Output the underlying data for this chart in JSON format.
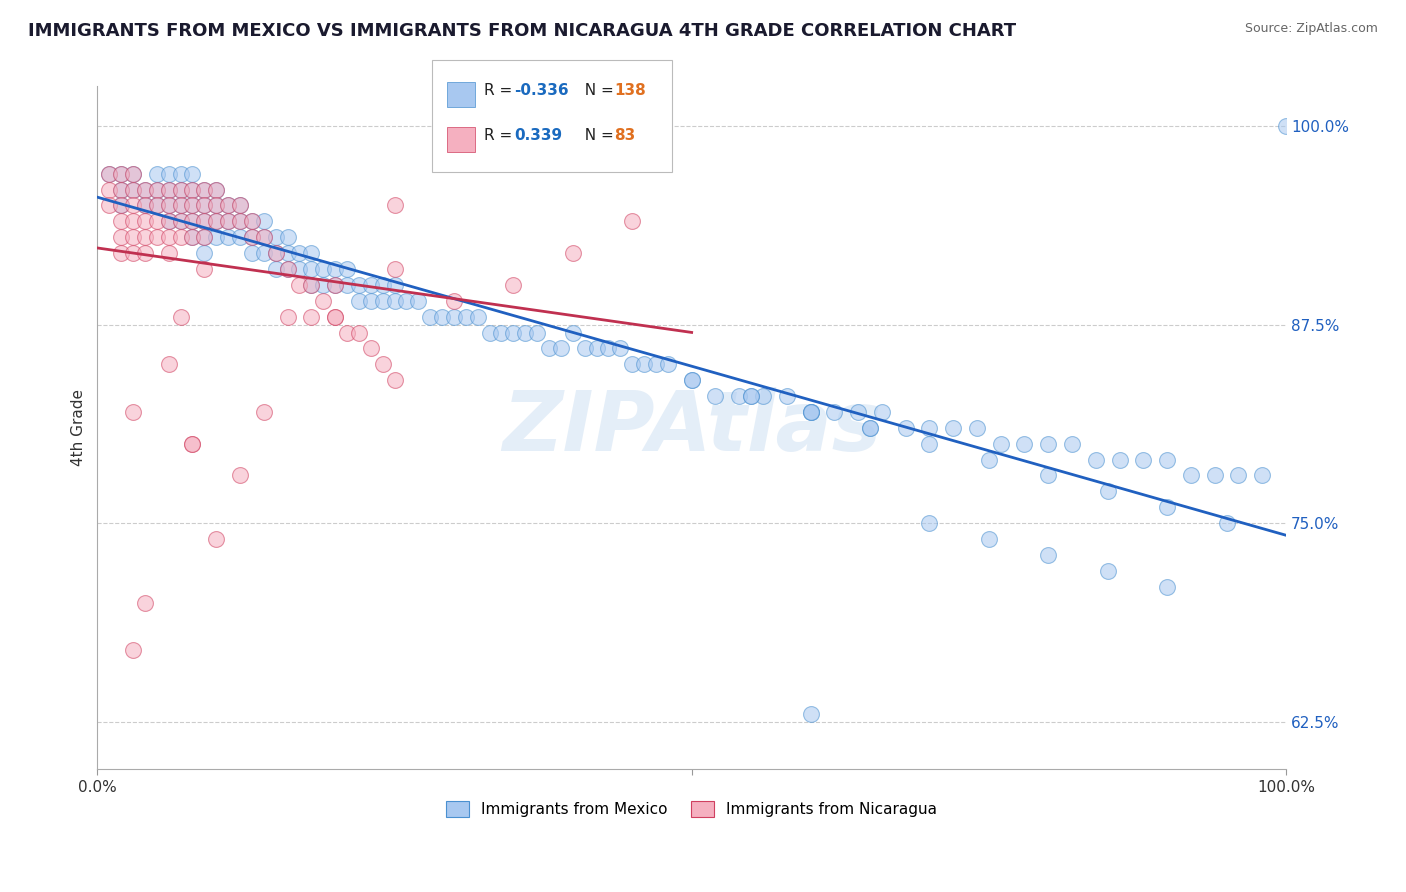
{
  "title": "IMMIGRANTS FROM MEXICO VS IMMIGRANTS FROM NICARAGUA 4TH GRADE CORRELATION CHART",
  "source": "Source: ZipAtlas.com",
  "ylabel": "4th Grade",
  "watermark": "ZIPAtlas",
  "legend_r_mexico": "-0.336",
  "legend_n_mexico": "138",
  "legend_r_nicaragua": "0.339",
  "legend_n_nicaragua": "83",
  "blue_face_color": "#a8c8f0",
  "blue_edge_color": "#4a90d0",
  "pink_face_color": "#f5b0c0",
  "pink_edge_color": "#d04060",
  "blue_line_color": "#2060c0",
  "pink_line_color": "#c03050",
  "ytick_labels": [
    "62.5%",
    "75.0%",
    "87.5%",
    "100.0%"
  ],
  "ytick_values": [
    0.625,
    0.75,
    0.875,
    1.0
  ],
  "blue_scatter_x": [
    0.01,
    0.02,
    0.02,
    0.02,
    0.03,
    0.03,
    0.04,
    0.04,
    0.05,
    0.05,
    0.05,
    0.06,
    0.06,
    0.06,
    0.06,
    0.07,
    0.07,
    0.07,
    0.07,
    0.08,
    0.08,
    0.08,
    0.08,
    0.08,
    0.09,
    0.09,
    0.09,
    0.09,
    0.09,
    0.1,
    0.1,
    0.1,
    0.1,
    0.11,
    0.11,
    0.11,
    0.12,
    0.12,
    0.12,
    0.13,
    0.13,
    0.13,
    0.14,
    0.14,
    0.14,
    0.15,
    0.15,
    0.15,
    0.16,
    0.16,
    0.16,
    0.17,
    0.17,
    0.18,
    0.18,
    0.18,
    0.19,
    0.19,
    0.2,
    0.2,
    0.21,
    0.21,
    0.22,
    0.22,
    0.23,
    0.23,
    0.24,
    0.24,
    0.25,
    0.25,
    0.26,
    0.27,
    0.28,
    0.29,
    0.3,
    0.31,
    0.32,
    0.33,
    0.34,
    0.35,
    0.36,
    0.37,
    0.38,
    0.39,
    0.4,
    0.41,
    0.42,
    0.43,
    0.44,
    0.45,
    0.46,
    0.47,
    0.48,
    0.5,
    0.52,
    0.54,
    0.56,
    0.58,
    0.6,
    0.62,
    0.64,
    0.66,
    0.68,
    0.7,
    0.72,
    0.74,
    0.76,
    0.78,
    0.8,
    0.82,
    0.84,
    0.86,
    0.88,
    0.9,
    0.92,
    0.94,
    0.96,
    0.98,
    1.0,
    0.5,
    0.55,
    0.6,
    0.65,
    0.7,
    0.75,
    0.8,
    0.85,
    0.9,
    0.95,
    0.55,
    0.6,
    0.65,
    0.7,
    0.75,
    0.8,
    0.85,
    0.9,
    0.6
  ],
  "blue_scatter_y": [
    0.97,
    0.97,
    0.96,
    0.95,
    0.97,
    0.96,
    0.96,
    0.95,
    0.97,
    0.96,
    0.95,
    0.97,
    0.96,
    0.95,
    0.94,
    0.97,
    0.96,
    0.95,
    0.94,
    0.97,
    0.96,
    0.95,
    0.94,
    0.93,
    0.96,
    0.95,
    0.94,
    0.93,
    0.92,
    0.96,
    0.95,
    0.94,
    0.93,
    0.95,
    0.94,
    0.93,
    0.95,
    0.94,
    0.93,
    0.94,
    0.93,
    0.92,
    0.94,
    0.93,
    0.92,
    0.93,
    0.92,
    0.91,
    0.93,
    0.92,
    0.91,
    0.92,
    0.91,
    0.92,
    0.91,
    0.9,
    0.91,
    0.9,
    0.91,
    0.9,
    0.91,
    0.9,
    0.9,
    0.89,
    0.9,
    0.89,
    0.9,
    0.89,
    0.9,
    0.89,
    0.89,
    0.89,
    0.88,
    0.88,
    0.88,
    0.88,
    0.88,
    0.87,
    0.87,
    0.87,
    0.87,
    0.87,
    0.86,
    0.86,
    0.87,
    0.86,
    0.86,
    0.86,
    0.86,
    0.85,
    0.85,
    0.85,
    0.85,
    0.84,
    0.83,
    0.83,
    0.83,
    0.83,
    0.82,
    0.82,
    0.82,
    0.82,
    0.81,
    0.81,
    0.81,
    0.81,
    0.8,
    0.8,
    0.8,
    0.8,
    0.79,
    0.79,
    0.79,
    0.79,
    0.78,
    0.78,
    0.78,
    0.78,
    1.0,
    0.84,
    0.83,
    0.82,
    0.81,
    0.8,
    0.79,
    0.78,
    0.77,
    0.76,
    0.75,
    0.83,
    0.82,
    0.81,
    0.75,
    0.74,
    0.73,
    0.72,
    0.71,
    0.63
  ],
  "pink_scatter_x": [
    0.01,
    0.01,
    0.01,
    0.02,
    0.02,
    0.02,
    0.02,
    0.02,
    0.02,
    0.03,
    0.03,
    0.03,
    0.03,
    0.03,
    0.03,
    0.04,
    0.04,
    0.04,
    0.04,
    0.04,
    0.05,
    0.05,
    0.05,
    0.05,
    0.06,
    0.06,
    0.06,
    0.06,
    0.06,
    0.07,
    0.07,
    0.07,
    0.07,
    0.08,
    0.08,
    0.08,
    0.08,
    0.09,
    0.09,
    0.09,
    0.09,
    0.1,
    0.1,
    0.1,
    0.11,
    0.11,
    0.12,
    0.12,
    0.13,
    0.13,
    0.14,
    0.15,
    0.16,
    0.17,
    0.18,
    0.19,
    0.2,
    0.21,
    0.22,
    0.23,
    0.24,
    0.25,
    0.07,
    0.09,
    0.12,
    0.16,
    0.2,
    0.25,
    0.3,
    0.35,
    0.4,
    0.45,
    0.04,
    0.03,
    0.08,
    0.14,
    0.2,
    0.1,
    0.08,
    0.18,
    0.25,
    0.03,
    0.06
  ],
  "pink_scatter_y": [
    0.97,
    0.96,
    0.95,
    0.97,
    0.96,
    0.95,
    0.94,
    0.93,
    0.92,
    0.97,
    0.96,
    0.95,
    0.94,
    0.93,
    0.92,
    0.96,
    0.95,
    0.94,
    0.93,
    0.92,
    0.96,
    0.95,
    0.94,
    0.93,
    0.96,
    0.95,
    0.94,
    0.93,
    0.92,
    0.96,
    0.95,
    0.94,
    0.93,
    0.96,
    0.95,
    0.94,
    0.93,
    0.96,
    0.95,
    0.94,
    0.93,
    0.96,
    0.95,
    0.94,
    0.95,
    0.94,
    0.95,
    0.94,
    0.94,
    0.93,
    0.93,
    0.92,
    0.91,
    0.9,
    0.9,
    0.89,
    0.88,
    0.87,
    0.87,
    0.86,
    0.85,
    0.84,
    0.88,
    0.91,
    0.78,
    0.88,
    0.88,
    0.91,
    0.89,
    0.9,
    0.92,
    0.94,
    0.7,
    0.67,
    0.8,
    0.82,
    0.9,
    0.74,
    0.8,
    0.88,
    0.95,
    0.82,
    0.85
  ]
}
